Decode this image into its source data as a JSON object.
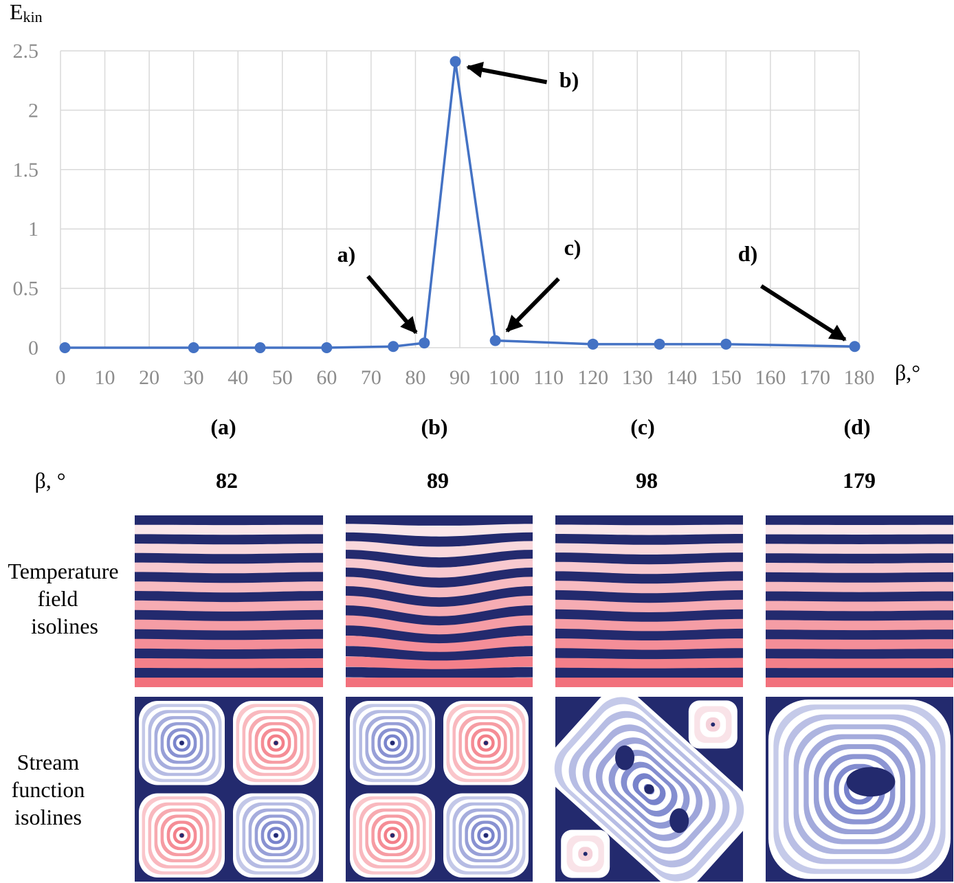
{
  "chart_data": {
    "type": "line",
    "title": "",
    "xlabel": "β,°",
    "ylabel": "E",
    "ylabel_sub": "kin",
    "xlim": [
      0,
      180
    ],
    "ylim": [
      0,
      2.5
    ],
    "x_ticks": [
      "0",
      "10",
      "20",
      "30",
      "40",
      "50",
      "60",
      "70",
      "80",
      "90",
      "100",
      "110",
      "120",
      "130",
      "140",
      "150",
      "160",
      "170",
      "180"
    ],
    "y_ticks": [
      "0",
      "0.5",
      "1",
      "1.5",
      "2",
      "2.5"
    ],
    "grid": true,
    "series": [
      {
        "name": "E_kin",
        "color": "#4472c4",
        "x": [
          1,
          30,
          45,
          60,
          75,
          82,
          89,
          98,
          120,
          135,
          150,
          179
        ],
        "y": [
          0.0,
          0.0,
          0.0,
          0.0,
          0.01,
          0.04,
          2.41,
          0.06,
          0.03,
          0.03,
          0.03,
          0.01
        ]
      }
    ],
    "annotations": [
      {
        "label": "a)",
        "x": 82,
        "y": 0.04
      },
      {
        "label": "b)",
        "x": 89,
        "y": 2.41
      },
      {
        "label": "c)",
        "x": 98,
        "y": 0.06
      },
      {
        "label": "d)",
        "x": 179,
        "y": 0.01
      }
    ]
  },
  "panels": {
    "beta_label": "β, °",
    "row_temperature": [
      "Temperature",
      "field",
      "isolines"
    ],
    "row_stream": [
      "Stream",
      "function",
      "isolines"
    ],
    "items": [
      {
        "label": "(a)",
        "beta": "82",
        "stream_mode": "quad"
      },
      {
        "label": "(b)",
        "beta": "89",
        "stream_mode": "quad"
      },
      {
        "label": "(c)",
        "beta": "98",
        "stream_mode": "diag"
      },
      {
        "label": "(d)",
        "beta": "179",
        "stream_mode": "single"
      }
    ],
    "temperature_waviness": [
      0.004,
      0.03,
      0.008,
      0.002
    ]
  },
  "colors": {
    "navy": "#232a6e",
    "line": "#4472c4",
    "grid": "#d9d9d9",
    "warm": "#f2717c",
    "cool": "#6a76c6"
  }
}
